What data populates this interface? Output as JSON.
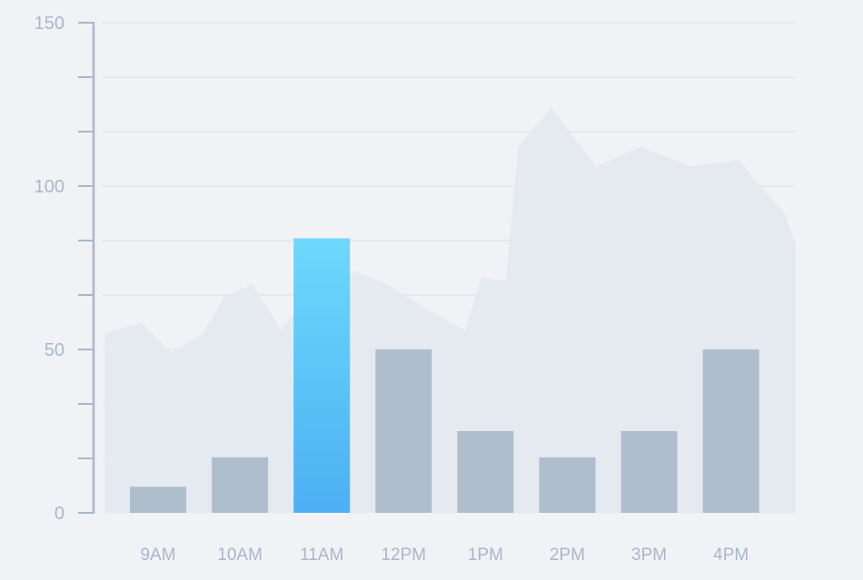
{
  "chart_data": {
    "type": "bar",
    "categories": [
      "9AM",
      "10AM",
      "11AM",
      "12PM",
      "1PM",
      "2PM",
      "3PM",
      "4PM"
    ],
    "values": [
      8,
      17,
      84,
      50,
      25,
      17,
      25,
      50
    ],
    "highlight_index": 2,
    "y_ticks": [
      "0",
      "50",
      "100",
      "150"
    ],
    "ylim": [
      0,
      150
    ],
    "grid": true,
    "background_area": {
      "type": "area",
      "x": [
        -0.65,
        -0.2,
        0.15,
        0.55,
        0.8,
        1.15,
        1.5,
        1.75,
        2.0,
        2.4,
        2.8,
        3.3,
        3.75,
        3.95,
        4.25,
        4.4,
        4.8,
        5.35,
        5.9,
        6.5,
        7.1,
        7.35,
        7.65,
        8.1
      ],
      "y": [
        55,
        58,
        49,
        55,
        66,
        70,
        56,
        64,
        68,
        74,
        70,
        62,
        56,
        72,
        71,
        112,
        124,
        106,
        112,
        106,
        108,
        100,
        92,
        82
      ]
    },
    "colors": {
      "bar": "#aebecd",
      "highlight_top": "#6dd8fb",
      "highlight_bottom": "#4cb0f3",
      "area": "#e3e9ef",
      "axis": "#a9b7c9",
      "grid": "#dfe3ea"
    }
  }
}
